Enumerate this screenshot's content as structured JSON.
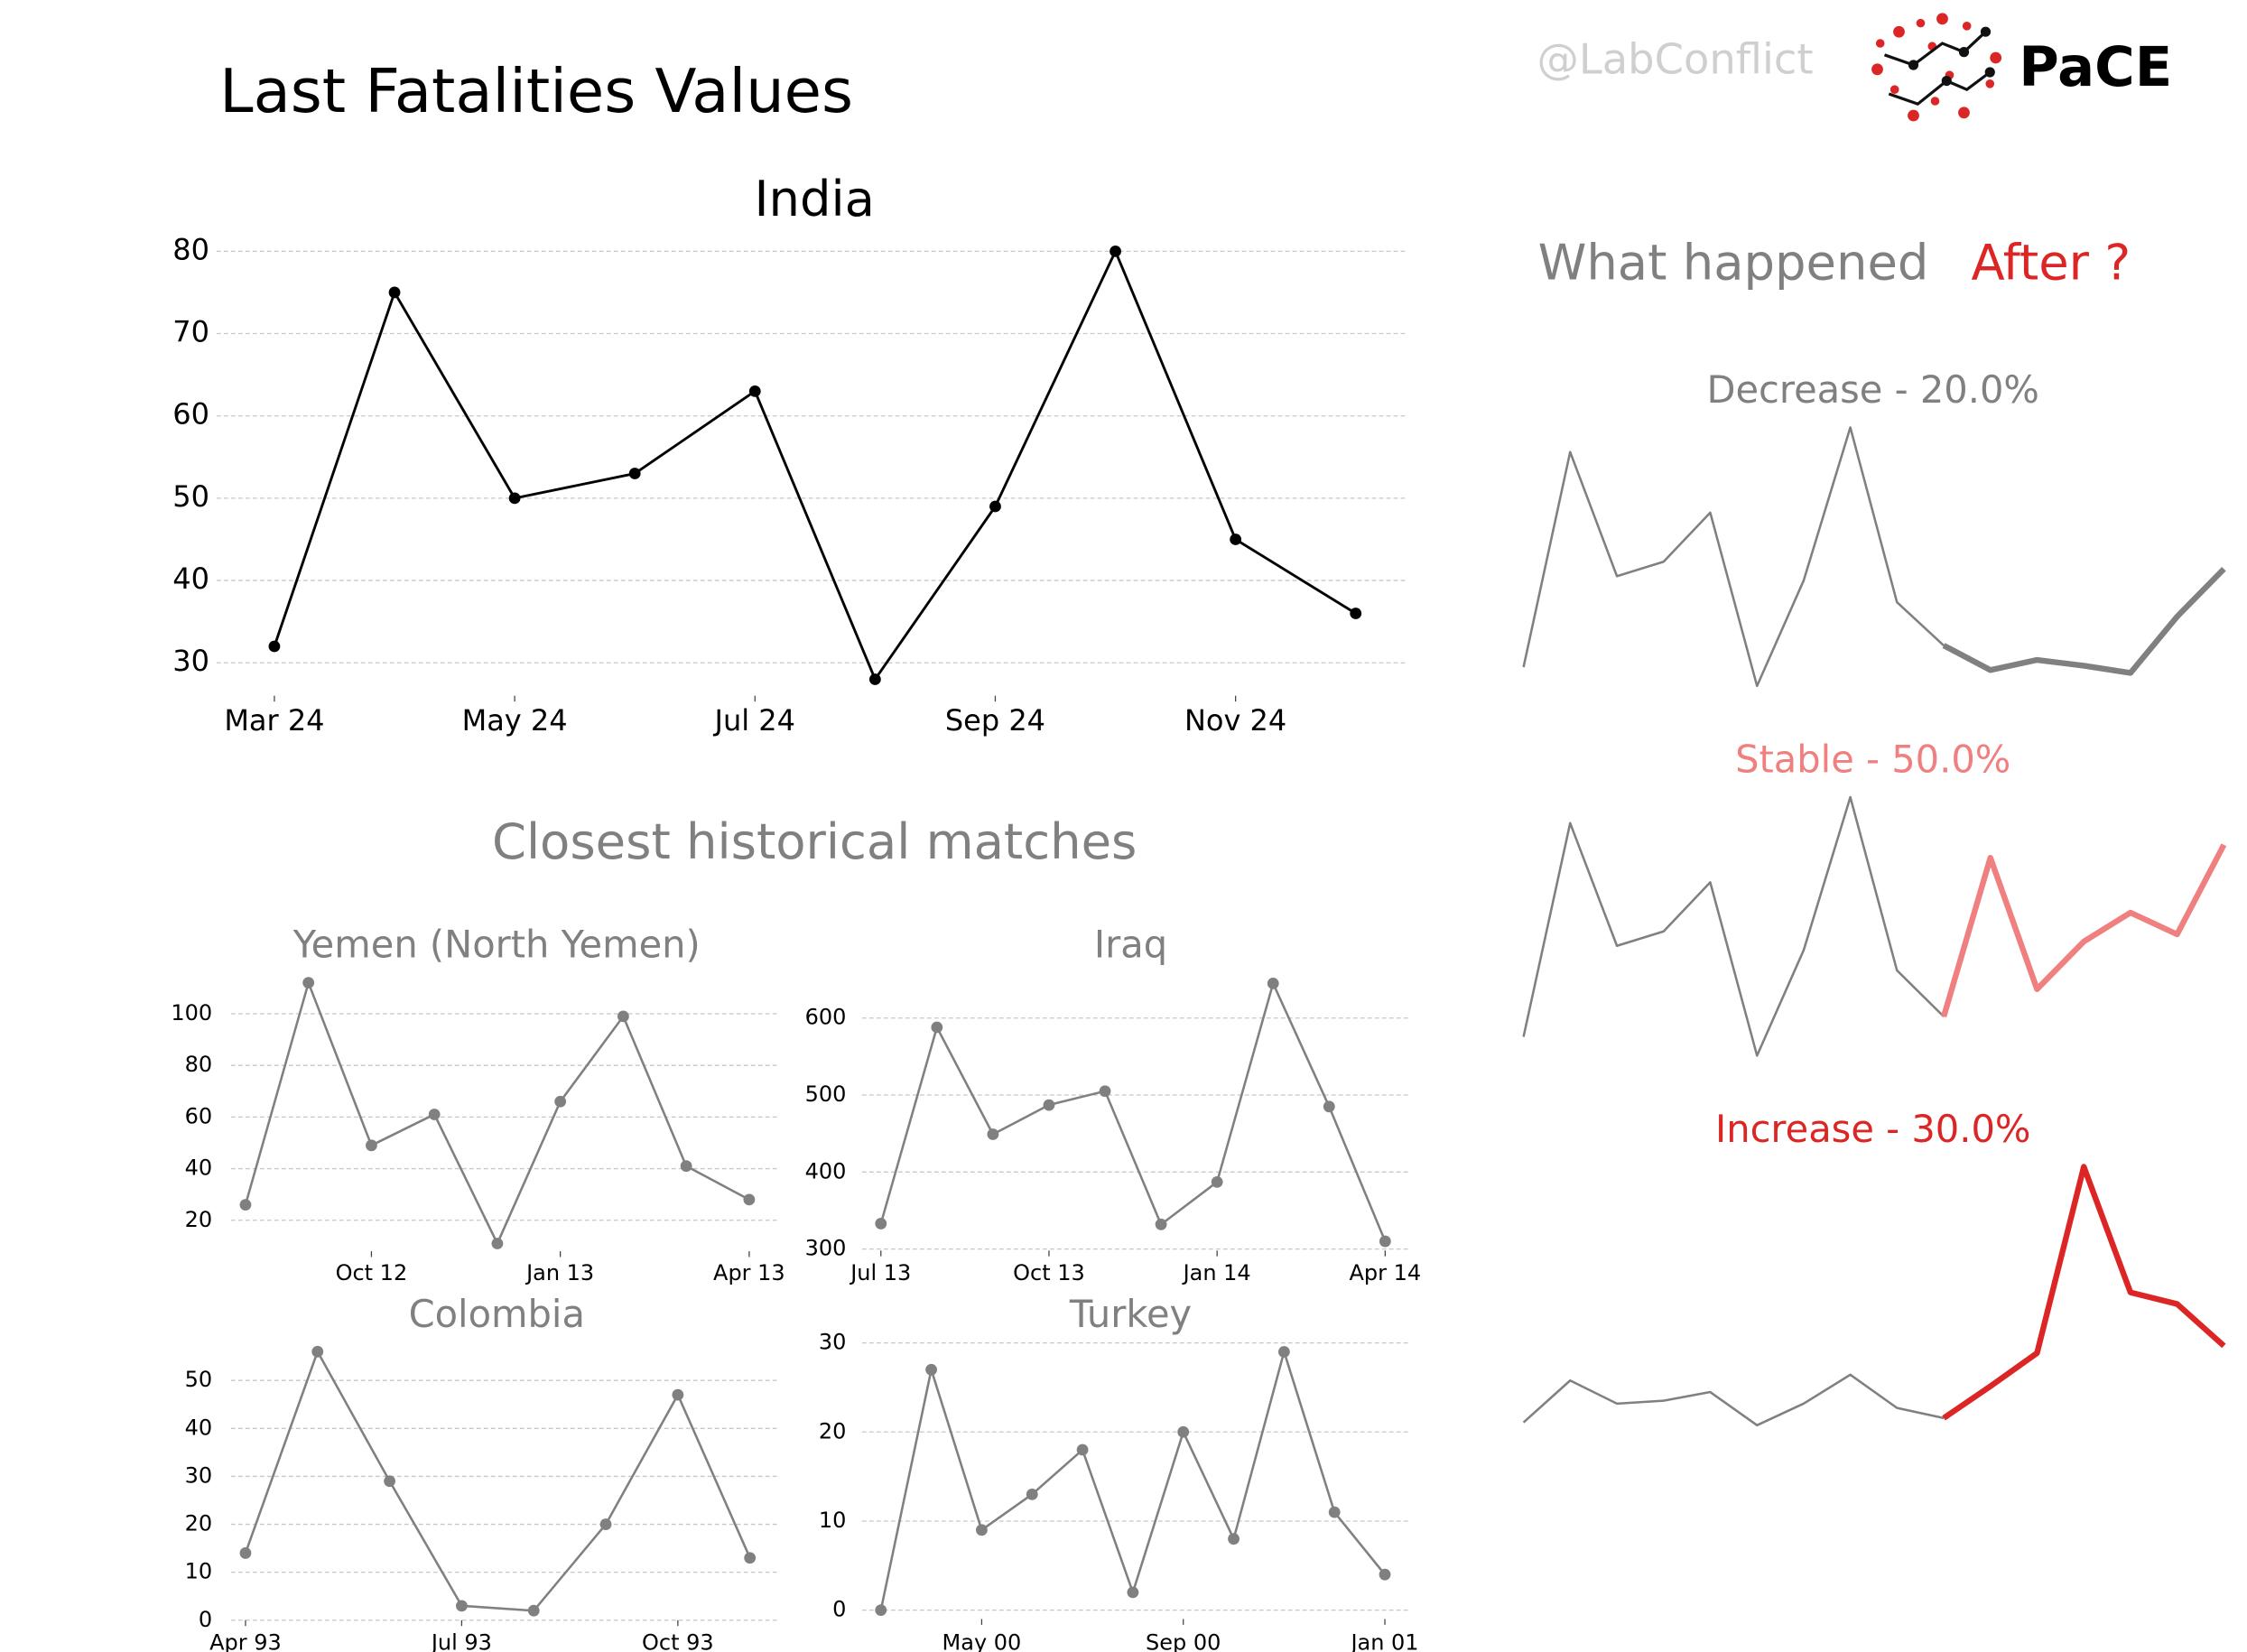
{
  "header": {
    "title": "Last Fatalities Values",
    "handle": "@LabConflict",
    "logo": "PaCE"
  },
  "sections": {
    "matches_title": "Closest historical matches",
    "after_title": [
      "What happened",
      "After ?"
    ]
  },
  "chart_data": [
    {
      "type": "line",
      "title": "India",
      "categories": [
        "Mar 24",
        null,
        "May 24",
        null,
        "Jul 24",
        null,
        "Sep 24",
        null,
        "Nov 24",
        null
      ],
      "values": [
        32,
        75,
        50,
        53,
        63,
        28,
        49,
        80,
        45,
        36
      ],
      "color": "#000000",
      "markers": true,
      "ylim": [
        26,
        81
      ],
      "yticks": [
        30,
        40,
        50,
        60,
        70,
        80
      ],
      "grid": true
    },
    {
      "type": "line",
      "title": "Yemen (North Yemen)",
      "categories": [
        null,
        null,
        "Oct 12",
        null,
        null,
        "Jan 13",
        null,
        null,
        "Apr 13"
      ],
      "values": [
        26,
        112,
        49,
        61,
        11,
        66,
        99,
        41,
        28
      ],
      "color": "#808080",
      "markers": true,
      "ylim": [
        8,
        115
      ],
      "yticks": [
        20,
        40,
        60,
        80,
        100
      ],
      "grid": true
    },
    {
      "type": "line",
      "title": "Iraq",
      "categories": [
        "Jul 13",
        null,
        null,
        "Oct 13",
        null,
        null,
        "Jan 14",
        null,
        null,
        "Apr 14"
      ],
      "values": [
        333,
        588,
        449,
        487,
        505,
        332,
        387,
        645,
        485,
        310
      ],
      "color": "#808080",
      "markers": true,
      "ylim": [
        298,
        660
      ],
      "yticks": [
        300,
        400,
        500,
        600
      ],
      "grid": true
    },
    {
      "type": "line",
      "title": "Colombia",
      "categories": [
        "Apr 93",
        null,
        null,
        "Jul 93",
        null,
        null,
        "Oct 93",
        null
      ],
      "values": [
        14,
        56,
        29,
        3,
        2,
        20,
        47,
        13
      ],
      "color": "#808080",
      "markers": true,
      "ylim": [
        0,
        58
      ],
      "yticks": [
        0,
        10,
        20,
        30,
        40,
        50
      ],
      "grid": true
    },
    {
      "type": "line",
      "title": "Turkey",
      "categories": [
        null,
        null,
        "May 00",
        null,
        null,
        null,
        "Sep 00",
        null,
        null,
        null,
        "Jan 01"
      ],
      "values": [
        0,
        27,
        9,
        13,
        18,
        2,
        20,
        8,
        29,
        11,
        4
      ],
      "color": "#808080",
      "markers": true,
      "ylim": [
        -1,
        31
      ],
      "yticks": [
        0,
        10,
        20,
        30
      ],
      "grid": true
    },
    {
      "type": "line",
      "title": "Decrease - 20.0%",
      "ylim": [
        0,
        220
      ],
      "markers": false,
      "grid": false,
      "series": [
        {
          "color": "#808080",
          "values": [
            38,
            187,
            101,
            111,
            145,
            25,
            98,
            204,
            83,
            53,
            null,
            null,
            null,
            null,
            null,
            null
          ]
        },
        {
          "color": "#808080",
          "values": [
            null,
            null,
            null,
            null,
            null,
            null,
            null,
            null,
            null,
            53,
            36,
            43,
            39,
            34,
            73,
            106
          ]
        }
      ]
    },
    {
      "type": "line",
      "title": "Stable - 50.0%",
      "ylim": [
        0,
        220
      ],
      "markers": false,
      "grid": false,
      "series": [
        {
          "color": "#808080",
          "values": [
            42,
            190,
            105,
            115,
            149,
            29,
            102,
            208,
            88,
            56,
            null,
            null,
            null,
            null,
            null,
            null
          ]
        },
        {
          "color": "#f08080",
          "values": [
            null,
            null,
            null,
            null,
            null,
            null,
            null,
            null,
            null,
            56,
            166,
            75,
            108,
            128,
            113,
            175
          ]
        }
      ]
    },
    {
      "type": "line",
      "title": "Increase - 30.0%",
      "ylim": [
        0,
        220
      ],
      "markers": false,
      "grid": false,
      "series": [
        {
          "color": "#808080",
          "values": [
            15,
            44,
            28,
            30,
            36,
            13,
            28,
            48,
            25,
            18,
            null,
            null,
            null,
            null,
            null,
            null
          ]
        },
        {
          "color": "#dc2626",
          "values": [
            null,
            null,
            null,
            null,
            null,
            null,
            null,
            null,
            null,
            18,
            40,
            63,
            192,
            105,
            97,
            68
          ]
        }
      ]
    }
  ]
}
